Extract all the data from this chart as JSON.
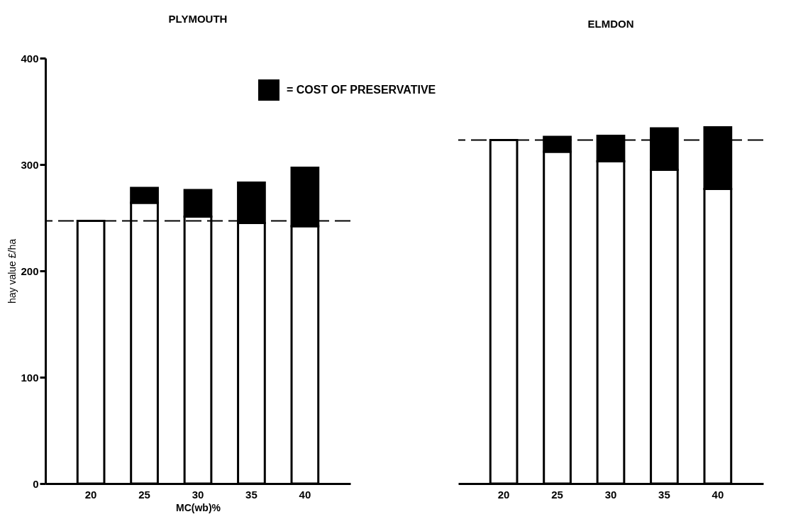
{
  "chart_data": [
    {
      "type": "bar",
      "title": "PLYMOUTH",
      "xlabel": "MC(wb)%",
      "ylabel": "hay value £/ha",
      "categories": [
        "20",
        "25",
        "30",
        "35",
        "40"
      ],
      "stacked": true,
      "series": [
        {
          "color": "#ffffff",
          "values": [
            247,
            264,
            251,
            245,
            242
          ]
        },
        {
          "name": "= COST OF PRESERVATIVE",
          "color": "#000000",
          "values": [
            null,
            14,
            25,
            38,
            55
          ]
        }
      ],
      "ylim": [
        0,
        400
      ],
      "yticks": [
        0,
        100,
        200,
        300,
        400
      ],
      "grid": false,
      "legend": "top right",
      "ref_lines": [
        {
          "axis": "y",
          "value": 247,
          "line_style": "dashed",
          "color": "#000000"
        }
      ]
    },
    {
      "type": "bar",
      "title": "ELMDON",
      "categories": [
        "20",
        "25",
        "30",
        "35",
        "40"
      ],
      "stacked": true,
      "series": [
        {
          "color": "#ffffff",
          "values": [
            323,
            312,
            303,
            295,
            277
          ]
        },
        {
          "color": "#000000",
          "values": [
            null,
            14,
            24,
            39,
            58
          ]
        }
      ],
      "ylim": [
        0,
        400
      ],
      "grid": false,
      "tick_labels": "x",
      "ref_lines": [
        {
          "axis": "y",
          "value": 323,
          "line_style": "dashed",
          "color": "#000000"
        }
      ]
    }
  ]
}
